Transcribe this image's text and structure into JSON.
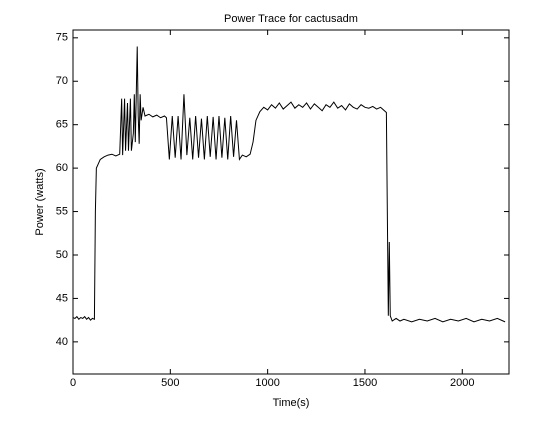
{
  "chart_data": {
    "type": "line",
    "title": "Power Trace for cactusadm",
    "xlabel": "Time(s)",
    "ylabel": "Power (watts)",
    "x": [
      0,
      10,
      20,
      30,
      40,
      50,
      60,
      70,
      80,
      90,
      100,
      110,
      115,
      120,
      130,
      140,
      160,
      180,
      200,
      220,
      240,
      250,
      255,
      265,
      270,
      280,
      285,
      295,
      300,
      310,
      315,
      320,
      330,
      335,
      340,
      345,
      350,
      360,
      370,
      390,
      410,
      430,
      450,
      470,
      480,
      495,
      510,
      525,
      540,
      555,
      570,
      585,
      600,
      615,
      630,
      645,
      660,
      675,
      690,
      705,
      720,
      735,
      750,
      765,
      780,
      795,
      810,
      825,
      840,
      855,
      870,
      890,
      910,
      925,
      940,
      960,
      980,
      1000,
      1020,
      1040,
      1060,
      1080,
      1100,
      1120,
      1140,
      1160,
      1180,
      1200,
      1220,
      1240,
      1260,
      1280,
      1300,
      1320,
      1340,
      1360,
      1380,
      1400,
      1420,
      1440,
      1460,
      1480,
      1500,
      1520,
      1540,
      1560,
      1580,
      1600,
      1610,
      1620,
      1625,
      1630,
      1640,
      1660,
      1680,
      1700,
      1740,
      1780,
      1820,
      1860,
      1900,
      1940,
      1980,
      2020,
      2060,
      2100,
      2140,
      2180,
      2220
    ],
    "series": [
      {
        "name": "Power",
        "color": "#000000",
        "values": [
          42.8,
          42.7,
          42.9,
          42.6,
          42.8,
          42.7,
          42.9,
          42.6,
          42.8,
          42.5,
          42.7,
          42.6,
          55,
          60,
          60.5,
          61,
          61.3,
          61.5,
          61.6,
          61.4,
          61.6,
          68,
          61.5,
          68,
          62,
          67.5,
          62,
          68,
          62,
          64,
          68.5,
          63,
          74,
          66,
          62.8,
          68.5,
          65.5,
          67,
          66,
          66.2,
          65.9,
          66.1,
          65.8,
          66,
          65.8,
          61,
          66,
          61.2,
          66,
          61,
          68.5,
          61.5,
          65.8,
          61,
          66,
          61.2,
          65.7,
          61,
          66,
          61.3,
          65.9,
          61,
          66,
          61.2,
          65.8,
          61,
          66,
          61.3,
          65.5,
          61,
          61.5,
          61.3,
          61.6,
          63,
          65.5,
          66.5,
          67,
          66.7,
          67.3,
          66.9,
          67.5,
          66.8,
          67.2,
          67.6,
          66.9,
          67.3,
          67,
          67.5,
          66.8,
          67.4,
          67,
          66.6,
          67.3,
          67,
          67.6,
          66.9,
          67.2,
          66.7,
          67.4,
          67,
          66.8,
          67.3,
          67,
          66.9,
          67.1,
          66.8,
          67,
          66.6,
          66.4,
          43,
          51.5,
          43,
          42.4,
          42.7,
          42.4,
          42.6,
          42.3,
          42.6,
          42.4,
          42.7,
          42.3,
          42.6,
          42.4,
          42.7,
          42.3,
          42.6,
          42.4,
          42.7,
          42.3
        ]
      }
    ],
    "xlim": [
      0,
      2240
    ],
    "ylim": [
      36.3,
      75.9
    ],
    "xticks": [
      0,
      500,
      1000,
      1500,
      2000
    ],
    "yticks": [
      40,
      45,
      50,
      55,
      60,
      65,
      70,
      75
    ]
  }
}
